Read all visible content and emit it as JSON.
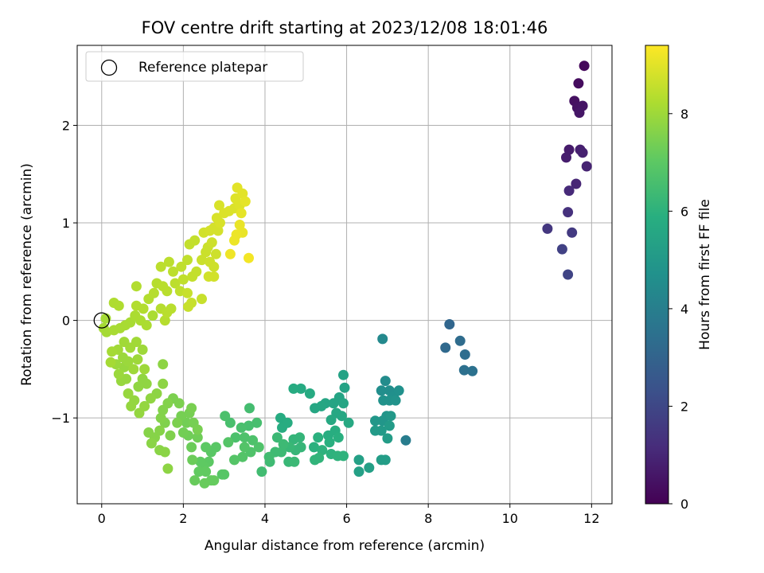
{
  "chart_data": {
    "type": "scatter",
    "title": "FOV centre drift starting at 2023/12/08 18:01:46",
    "xlabel": "Angular distance from reference (arcmin)",
    "ylabel": "Rotation from reference (arcmin)",
    "xlim": [
      -0.6,
      12.5
    ],
    "ylim": [
      -1.88,
      2.82
    ],
    "xticks": [
      0,
      2,
      4,
      6,
      8,
      10,
      12
    ],
    "yticks": [
      -1,
      0,
      1,
      2
    ],
    "xtick_labels": [
      "0",
      "2",
      "4",
      "6",
      "8",
      "10",
      "12"
    ],
    "ytick_labels": [
      "−1",
      "0",
      "1",
      "2"
    ],
    "grid": true,
    "colormap": "viridis",
    "colorbar": {
      "label": "Hours from first FF file",
      "range": [
        0,
        9.4
      ],
      "ticks": [
        0,
        2,
        4,
        6,
        8
      ],
      "tick_labels": [
        "0",
        "2",
        "4",
        "6",
        "8"
      ]
    },
    "legend": {
      "position": "top-left",
      "entries": [
        {
          "label": "Reference platepar",
          "marker": "open-circle"
        }
      ]
    },
    "reference_point": {
      "x": 0,
      "y": 0
    },
    "points": [
      {
        "x": 11.82,
        "y": 2.61,
        "t": 0.2
      },
      {
        "x": 11.68,
        "y": 2.43,
        "t": 0.3
      },
      {
        "x": 11.58,
        "y": 2.25,
        "t": 0.4
      },
      {
        "x": 11.65,
        "y": 2.18,
        "t": 0.45
      },
      {
        "x": 11.78,
        "y": 2.2,
        "t": 0.5
      },
      {
        "x": 11.7,
        "y": 2.13,
        "t": 0.55
      },
      {
        "x": 11.45,
        "y": 1.75,
        "t": 0.7
      },
      {
        "x": 11.38,
        "y": 1.67,
        "t": 0.75
      },
      {
        "x": 11.72,
        "y": 1.75,
        "t": 0.8
      },
      {
        "x": 11.78,
        "y": 1.72,
        "t": 0.85
      },
      {
        "x": 11.88,
        "y": 1.58,
        "t": 0.9
      },
      {
        "x": 11.62,
        "y": 1.4,
        "t": 1.0
      },
      {
        "x": 11.45,
        "y": 1.33,
        "t": 1.1
      },
      {
        "x": 11.42,
        "y": 1.11,
        "t": 1.3
      },
      {
        "x": 10.92,
        "y": 0.94,
        "t": 1.5
      },
      {
        "x": 11.52,
        "y": 0.9,
        "t": 1.6
      },
      {
        "x": 11.28,
        "y": 0.73,
        "t": 1.8
      },
      {
        "x": 11.42,
        "y": 0.47,
        "t": 1.9
      },
      {
        "x": 8.52,
        "y": -0.04,
        "t": 3.1
      },
      {
        "x": 8.42,
        "y": -0.28,
        "t": 3.2
      },
      {
        "x": 8.78,
        "y": -0.21,
        "t": 3.3
      },
      {
        "x": 8.9,
        "y": -0.35,
        "t": 3.35
      },
      {
        "x": 8.88,
        "y": -0.51,
        "t": 3.45
      },
      {
        "x": 9.08,
        "y": -0.52,
        "t": 3.5
      },
      {
        "x": 7.45,
        "y": -1.23,
        "t": 3.9
      },
      {
        "x": 6.88,
        "y": -0.19,
        "t": 4.4
      },
      {
        "x": 6.95,
        "y": -0.62,
        "t": 4.5
      },
      {
        "x": 6.85,
        "y": -0.72,
        "t": 4.6
      },
      {
        "x": 7.05,
        "y": -0.72,
        "t": 4.6
      },
      {
        "x": 7.15,
        "y": -0.78,
        "t": 4.65
      },
      {
        "x": 7.28,
        "y": -0.72,
        "t": 4.7
      },
      {
        "x": 6.9,
        "y": -0.82,
        "t": 4.75
      },
      {
        "x": 7.05,
        "y": -0.82,
        "t": 4.75
      },
      {
        "x": 7.2,
        "y": -0.82,
        "t": 4.8
      },
      {
        "x": 6.98,
        "y": -0.98,
        "t": 4.85
      },
      {
        "x": 6.88,
        "y": -1.03,
        "t": 4.9
      },
      {
        "x": 6.7,
        "y": -1.03,
        "t": 4.95
      },
      {
        "x": 7.08,
        "y": -0.98,
        "t": 5.0
      },
      {
        "x": 6.7,
        "y": -1.13,
        "t": 5.05
      },
      {
        "x": 6.85,
        "y": -1.13,
        "t": 5.05
      },
      {
        "x": 7.05,
        "y": -1.08,
        "t": 5.1
      },
      {
        "x": 7.0,
        "y": -1.21,
        "t": 5.15
      },
      {
        "x": 6.85,
        "y": -1.43,
        "t": 5.2
      },
      {
        "x": 6.95,
        "y": -1.43,
        "t": 5.2
      },
      {
        "x": 6.55,
        "y": -1.51,
        "t": 5.25
      },
      {
        "x": 6.3,
        "y": -1.43,
        "t": 5.3
      },
      {
        "x": 6.3,
        "y": -1.55,
        "t": 5.3
      },
      {
        "x": 5.92,
        "y": -0.56,
        "t": 5.4
      },
      {
        "x": 5.95,
        "y": -0.69,
        "t": 5.4
      },
      {
        "x": 5.82,
        "y": -0.79,
        "t": 5.45
      },
      {
        "x": 5.68,
        "y": -0.85,
        "t": 5.45
      },
      {
        "x": 5.92,
        "y": -0.85,
        "t": 5.5
      },
      {
        "x": 5.48,
        "y": -0.85,
        "t": 5.5
      },
      {
        "x": 5.38,
        "y": -0.88,
        "t": 5.55
      },
      {
        "x": 5.22,
        "y": -0.9,
        "t": 5.55
      },
      {
        "x": 5.75,
        "y": -0.95,
        "t": 5.6
      },
      {
        "x": 5.88,
        "y": -0.98,
        "t": 5.6
      },
      {
        "x": 5.62,
        "y": -1.02,
        "t": 5.65
      },
      {
        "x": 6.05,
        "y": -1.05,
        "t": 5.65
      },
      {
        "x": 5.1,
        "y": -0.75,
        "t": 5.7
      },
      {
        "x": 4.88,
        "y": -0.7,
        "t": 5.7
      },
      {
        "x": 4.7,
        "y": -0.7,
        "t": 5.75
      },
      {
        "x": 4.38,
        "y": -1.0,
        "t": 5.75
      },
      {
        "x": 4.42,
        "y": -1.1,
        "t": 5.8
      },
      {
        "x": 4.55,
        "y": -1.05,
        "t": 5.8
      },
      {
        "x": 5.55,
        "y": -1.18,
        "t": 5.85
      },
      {
        "x": 5.72,
        "y": -1.13,
        "t": 5.85
      },
      {
        "x": 5.8,
        "y": -1.2,
        "t": 5.9
      },
      {
        "x": 5.58,
        "y": -1.25,
        "t": 5.9
      },
      {
        "x": 5.3,
        "y": -1.2,
        "t": 5.95
      },
      {
        "x": 5.2,
        "y": -1.3,
        "t": 5.95
      },
      {
        "x": 5.4,
        "y": -1.33,
        "t": 6.0
      },
      {
        "x": 5.62,
        "y": -1.37,
        "t": 6.0
      },
      {
        "x": 5.78,
        "y": -1.39,
        "t": 6.05
      },
      {
        "x": 5.92,
        "y": -1.39,
        "t": 6.05
      },
      {
        "x": 5.22,
        "y": -1.43,
        "t": 6.1
      },
      {
        "x": 5.32,
        "y": -1.41,
        "t": 6.1
      },
      {
        "x": 4.85,
        "y": -1.2,
        "t": 6.15
      },
      {
        "x": 4.7,
        "y": -1.22,
        "t": 6.15
      },
      {
        "x": 4.88,
        "y": -1.3,
        "t": 6.2
      },
      {
        "x": 4.75,
        "y": -1.33,
        "t": 6.2
      },
      {
        "x": 4.6,
        "y": -1.3,
        "t": 6.25
      },
      {
        "x": 4.58,
        "y": -1.45,
        "t": 6.25
      },
      {
        "x": 4.72,
        "y": -1.45,
        "t": 6.3
      },
      {
        "x": 4.3,
        "y": -1.2,
        "t": 6.3
      },
      {
        "x": 4.45,
        "y": -1.27,
        "t": 6.35
      },
      {
        "x": 4.4,
        "y": -1.35,
        "t": 6.35
      },
      {
        "x": 4.25,
        "y": -1.35,
        "t": 6.4
      },
      {
        "x": 4.12,
        "y": -1.45,
        "t": 6.4
      },
      {
        "x": 4.1,
        "y": -1.4,
        "t": 6.45
      },
      {
        "x": 3.92,
        "y": -1.55,
        "t": 6.45
      },
      {
        "x": 3.62,
        "y": -0.9,
        "t": 6.5
      },
      {
        "x": 3.8,
        "y": -1.05,
        "t": 6.55
      },
      {
        "x": 3.6,
        "y": -1.08,
        "t": 6.55
      },
      {
        "x": 3.42,
        "y": -1.1,
        "t": 6.6
      },
      {
        "x": 3.15,
        "y": -1.05,
        "t": 6.6
      },
      {
        "x": 3.02,
        "y": -0.98,
        "t": 6.65
      },
      {
        "x": 3.28,
        "y": -1.2,
        "t": 6.65
      },
      {
        "x": 3.5,
        "y": -1.2,
        "t": 6.7
      },
      {
        "x": 3.7,
        "y": -1.23,
        "t": 6.7
      },
      {
        "x": 3.85,
        "y": -1.3,
        "t": 6.75
      },
      {
        "x": 3.65,
        "y": -1.35,
        "t": 6.75
      },
      {
        "x": 3.5,
        "y": -1.3,
        "t": 6.8
      },
      {
        "x": 3.45,
        "y": -1.4,
        "t": 6.8
      },
      {
        "x": 3.25,
        "y": -1.43,
        "t": 6.85
      },
      {
        "x": 3.1,
        "y": -1.25,
        "t": 6.85
      },
      {
        "x": 3.0,
        "y": -1.58,
        "t": 6.9
      },
      {
        "x": 2.95,
        "y": -1.58,
        "t": 6.9
      },
      {
        "x": 2.8,
        "y": -1.3,
        "t": 6.95
      },
      {
        "x": 2.68,
        "y": -1.35,
        "t": 6.95
      },
      {
        "x": 2.55,
        "y": -1.3,
        "t": 7.0
      },
      {
        "x": 2.62,
        "y": -1.45,
        "t": 7.0
      },
      {
        "x": 2.5,
        "y": -1.5,
        "t": 7.05
      },
      {
        "x": 2.42,
        "y": -1.45,
        "t": 7.05
      },
      {
        "x": 2.38,
        "y": -1.55,
        "t": 7.1
      },
      {
        "x": 2.55,
        "y": -1.55,
        "t": 7.1
      },
      {
        "x": 2.75,
        "y": -1.64,
        "t": 7.15
      },
      {
        "x": 2.68,
        "y": -1.64,
        "t": 7.15
      },
      {
        "x": 2.52,
        "y": -1.67,
        "t": 7.2
      },
      {
        "x": 2.28,
        "y": -1.64,
        "t": 7.2
      },
      {
        "x": 2.22,
        "y": -1.43,
        "t": 7.25
      },
      {
        "x": 2.2,
        "y": -1.3,
        "t": 7.25
      },
      {
        "x": 2.35,
        "y": -1.2,
        "t": 7.3
      },
      {
        "x": 2.12,
        "y": -1.18,
        "t": 7.3
      },
      {
        "x": 2.0,
        "y": -1.15,
        "t": 7.35
      },
      {
        "x": 2.08,
        "y": -1.05,
        "t": 7.35
      },
      {
        "x": 1.95,
        "y": -0.98,
        "t": 7.4
      },
      {
        "x": 2.15,
        "y": -0.95,
        "t": 7.4
      },
      {
        "x": 2.25,
        "y": -1.05,
        "t": 7.4
      },
      {
        "x": 2.35,
        "y": -1.12,
        "t": 7.45
      },
      {
        "x": 2.2,
        "y": -0.9,
        "t": 7.45
      },
      {
        "x": 1.9,
        "y": -0.85,
        "t": 7.5
      },
      {
        "x": 1.75,
        "y": -0.8,
        "t": 7.5
      },
      {
        "x": 1.85,
        "y": -1.05,
        "t": 7.5
      },
      {
        "x": 1.68,
        "y": -1.18,
        "t": 7.55
      },
      {
        "x": 1.55,
        "y": -1.05,
        "t": 7.55
      },
      {
        "x": 1.45,
        "y": -1.0,
        "t": 7.6
      },
      {
        "x": 1.5,
        "y": -0.92,
        "t": 7.6
      },
      {
        "x": 1.62,
        "y": -0.85,
        "t": 7.6
      },
      {
        "x": 1.42,
        "y": -1.13,
        "t": 7.65
      },
      {
        "x": 1.3,
        "y": -1.2,
        "t": 7.65
      },
      {
        "x": 1.15,
        "y": -1.15,
        "t": 7.65
      },
      {
        "x": 1.22,
        "y": -1.26,
        "t": 7.7
      },
      {
        "x": 1.42,
        "y": -1.33,
        "t": 7.7
      },
      {
        "x": 1.55,
        "y": -1.35,
        "t": 7.7
      },
      {
        "x": 1.62,
        "y": -1.52,
        "t": 7.75
      },
      {
        "x": 1.5,
        "y": -0.45,
        "t": 7.75
      },
      {
        "x": 1.5,
        "y": -0.65,
        "t": 7.75
      },
      {
        "x": 1.35,
        "y": -0.75,
        "t": 7.75
      },
      {
        "x": 1.2,
        "y": -0.8,
        "t": 7.8
      },
      {
        "x": 1.1,
        "y": -0.65,
        "t": 7.8
      },
      {
        "x": 1.0,
        "y": -0.6,
        "t": 7.8
      },
      {
        "x": 0.9,
        "y": -0.68,
        "t": 7.8
      },
      {
        "x": 1.05,
        "y": -0.88,
        "t": 7.85
      },
      {
        "x": 0.92,
        "y": -0.95,
        "t": 7.85
      },
      {
        "x": 0.8,
        "y": -0.82,
        "t": 7.85
      },
      {
        "x": 0.72,
        "y": -0.88,
        "t": 7.85
      },
      {
        "x": 0.65,
        "y": -0.75,
        "t": 7.9
      },
      {
        "x": 0.6,
        "y": -0.6,
        "t": 7.9
      },
      {
        "x": 0.48,
        "y": -0.62,
        "t": 7.9
      },
      {
        "x": 0.55,
        "y": -0.48,
        "t": 7.9
      },
      {
        "x": 0.42,
        "y": -0.55,
        "t": 7.95
      },
      {
        "x": 0.35,
        "y": -0.45,
        "t": 7.95
      },
      {
        "x": 0.52,
        "y": -0.38,
        "t": 7.95
      },
      {
        "x": 0.65,
        "y": -0.42,
        "t": 7.95
      },
      {
        "x": 0.78,
        "y": -0.5,
        "t": 8.0
      },
      {
        "x": 0.88,
        "y": -0.4,
        "t": 8.0
      },
      {
        "x": 1.05,
        "y": -0.5,
        "t": 8.0
      },
      {
        "x": 1.0,
        "y": -0.3,
        "t": 8.0
      },
      {
        "x": 0.85,
        "y": -0.22,
        "t": 8.05
      },
      {
        "x": 0.7,
        "y": -0.28,
        "t": 8.05
      },
      {
        "x": 0.55,
        "y": -0.22,
        "t": 8.05
      },
      {
        "x": 0.4,
        "y": -0.3,
        "t": 8.05
      },
      {
        "x": 0.25,
        "y": -0.32,
        "t": 8.1
      },
      {
        "x": 0.22,
        "y": -0.43,
        "t": 8.1
      },
      {
        "x": 0.12,
        "y": -0.12,
        "t": 8.1
      },
      {
        "x": 0.05,
        "y": -0.08,
        "t": 8.1
      },
      {
        "x": 0.1,
        "y": 0.02,
        "t": 8.1
      },
      {
        "x": 0.3,
        "y": -0.1,
        "t": 8.15
      },
      {
        "x": 0.45,
        "y": -0.08,
        "t": 8.15
      },
      {
        "x": 0.58,
        "y": -0.05,
        "t": 8.15
      },
      {
        "x": 0.7,
        "y": -0.02,
        "t": 8.15
      },
      {
        "x": 0.82,
        "y": 0.05,
        "t": 8.2
      },
      {
        "x": 0.95,
        "y": 0.0,
        "t": 8.2
      },
      {
        "x": 1.1,
        "y": -0.05,
        "t": 8.2
      },
      {
        "x": 1.25,
        "y": 0.05,
        "t": 8.2
      },
      {
        "x": 0.3,
        "y": 0.18,
        "t": 8.25
      },
      {
        "x": 0.42,
        "y": 0.15,
        "t": 8.25
      },
      {
        "x": 0.85,
        "y": 0.15,
        "t": 8.3
      },
      {
        "x": 0.85,
        "y": 0.35,
        "t": 8.3
      },
      {
        "x": 1.02,
        "y": 0.12,
        "t": 8.3
      },
      {
        "x": 1.15,
        "y": 0.22,
        "t": 8.3
      },
      {
        "x": 1.28,
        "y": 0.28,
        "t": 8.35
      },
      {
        "x": 1.35,
        "y": 0.38,
        "t": 8.35
      },
      {
        "x": 1.45,
        "y": 0.12,
        "t": 8.35
      },
      {
        "x": 1.55,
        "y": 0.0,
        "t": 8.35
      },
      {
        "x": 1.6,
        "y": 0.08,
        "t": 8.4
      },
      {
        "x": 1.7,
        "y": 0.12,
        "t": 8.4
      },
      {
        "x": 1.5,
        "y": 0.35,
        "t": 8.4
      },
      {
        "x": 1.6,
        "y": 0.3,
        "t": 8.4
      },
      {
        "x": 1.45,
        "y": 0.55,
        "t": 8.45
      },
      {
        "x": 1.65,
        "y": 0.6,
        "t": 8.45
      },
      {
        "x": 1.75,
        "y": 0.5,
        "t": 8.45
      },
      {
        "x": 1.8,
        "y": 0.38,
        "t": 8.45
      },
      {
        "x": 1.92,
        "y": 0.3,
        "t": 8.5
      },
      {
        "x": 2.0,
        "y": 0.42,
        "t": 8.5
      },
      {
        "x": 1.95,
        "y": 0.55,
        "t": 8.5
      },
      {
        "x": 2.1,
        "y": 0.62,
        "t": 8.5
      },
      {
        "x": 2.15,
        "y": 0.78,
        "t": 8.55
      },
      {
        "x": 2.28,
        "y": 0.82,
        "t": 8.55
      },
      {
        "x": 2.22,
        "y": 0.45,
        "t": 8.55
      },
      {
        "x": 2.32,
        "y": 0.5,
        "t": 8.55
      },
      {
        "x": 2.1,
        "y": 0.28,
        "t": 8.6
      },
      {
        "x": 2.2,
        "y": 0.18,
        "t": 8.6
      },
      {
        "x": 2.12,
        "y": 0.14,
        "t": 8.6
      },
      {
        "x": 2.45,
        "y": 0.22,
        "t": 8.6
      },
      {
        "x": 2.45,
        "y": 0.62,
        "t": 8.65
      },
      {
        "x": 2.55,
        "y": 0.7,
        "t": 8.65
      },
      {
        "x": 2.6,
        "y": 0.75,
        "t": 8.65
      },
      {
        "x": 2.7,
        "y": 0.8,
        "t": 8.7
      },
      {
        "x": 2.65,
        "y": 0.6,
        "t": 8.7
      },
      {
        "x": 2.75,
        "y": 0.55,
        "t": 8.7
      },
      {
        "x": 2.8,
        "y": 0.68,
        "t": 8.7
      },
      {
        "x": 2.75,
        "y": 0.45,
        "t": 8.75
      },
      {
        "x": 2.62,
        "y": 0.45,
        "t": 8.75
      },
      {
        "x": 2.5,
        "y": 0.9,
        "t": 8.75
      },
      {
        "x": 2.65,
        "y": 0.92,
        "t": 8.8
      },
      {
        "x": 2.75,
        "y": 0.95,
        "t": 8.8
      },
      {
        "x": 2.85,
        "y": 0.92,
        "t": 8.8
      },
      {
        "x": 2.9,
        "y": 1.0,
        "t": 8.85
      },
      {
        "x": 2.82,
        "y": 1.05,
        "t": 8.85
      },
      {
        "x": 2.88,
        "y": 1.18,
        "t": 8.85
      },
      {
        "x": 3.0,
        "y": 1.1,
        "t": 8.9
      },
      {
        "x": 3.12,
        "y": 1.12,
        "t": 8.9
      },
      {
        "x": 3.25,
        "y": 1.15,
        "t": 8.9
      },
      {
        "x": 3.38,
        "y": 1.18,
        "t": 8.95
      },
      {
        "x": 3.28,
        "y": 1.25,
        "t": 8.95
      },
      {
        "x": 3.32,
        "y": 1.36,
        "t": 9.0
      },
      {
        "x": 3.45,
        "y": 1.3,
        "t": 9.0
      },
      {
        "x": 3.52,
        "y": 1.22,
        "t": 9.05
      },
      {
        "x": 3.42,
        "y": 1.1,
        "t": 9.05
      },
      {
        "x": 3.38,
        "y": 0.98,
        "t": 9.1
      },
      {
        "x": 3.45,
        "y": 0.9,
        "t": 9.1
      },
      {
        "x": 3.3,
        "y": 0.88,
        "t": 9.15
      },
      {
        "x": 3.25,
        "y": 0.82,
        "t": 9.15
      },
      {
        "x": 3.15,
        "y": 0.68,
        "t": 9.2
      },
      {
        "x": 3.6,
        "y": 0.64,
        "t": 9.25
      }
    ]
  }
}
